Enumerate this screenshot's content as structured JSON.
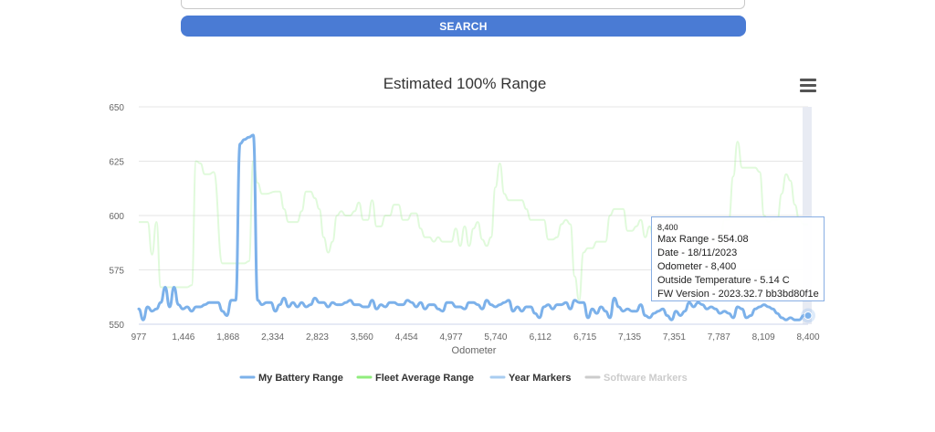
{
  "search": {
    "button_label": "SEARCH"
  },
  "chart_data": {
    "type": "line",
    "title": "Estimated 100% Range",
    "xlabel": "Odometer",
    "ylabel": "",
    "ylim": [
      550,
      650
    ],
    "yticks": [
      550,
      575,
      600,
      625,
      650
    ],
    "xtick_labels": [
      "977",
      "1,446",
      "1,868",
      "2,334",
      "2,823",
      "3,560",
      "4,454",
      "4,977",
      "5,740",
      "6,112",
      "6,715",
      "7,135",
      "7,351",
      "7,787",
      "8,109",
      "8,400"
    ],
    "grid": true,
    "legend_position": "bottom",
    "point_count": 156,
    "series": [
      {
        "name": "My Battery Range",
        "color": "#7cb1ea",
        "visible": true,
        "values": [
          [
            0,
            557
          ],
          [
            4,
            552
          ],
          [
            8,
            558
          ],
          [
            12,
            556
          ],
          [
            16,
            557
          ],
          [
            20,
            560
          ],
          [
            24,
            567
          ],
          [
            28,
            558
          ],
          [
            32,
            567
          ],
          [
            36,
            559
          ],
          [
            40,
            557
          ],
          [
            44,
            558
          ],
          [
            48,
            556
          ],
          [
            52,
            558
          ],
          [
            56,
            558
          ],
          [
            60,
            559
          ],
          [
            64,
            560
          ],
          [
            68,
            560
          ],
          [
            72,
            560
          ],
          [
            76,
            556
          ],
          [
            80,
            554
          ],
          [
            84,
            561
          ],
          [
            88,
            561
          ],
          [
            92,
            633
          ],
          [
            96,
            635
          ],
          [
            100,
            636
          ],
          [
            104,
            637
          ],
          [
            108,
            561
          ],
          [
            112,
            559
          ],
          [
            116,
            560
          ],
          [
            120,
            560
          ],
          [
            124,
            556
          ],
          [
            128,
            559
          ],
          [
            132,
            562
          ],
          [
            136,
            558
          ],
          [
            140,
            560
          ],
          [
            144,
            558
          ],
          [
            148,
            560
          ],
          [
            152,
            558
          ],
          [
            156,
            559
          ],
          [
            160,
            562
          ],
          [
            164,
            560
          ],
          [
            168,
            560
          ],
          [
            172,
            558
          ],
          [
            176,
            560
          ],
          [
            180,
            559
          ],
          [
            184,
            559
          ],
          [
            188,
            560
          ],
          [
            192,
            561
          ],
          [
            196,
            559
          ],
          [
            200,
            559
          ],
          [
            204,
            558
          ],
          [
            208,
            558
          ],
          [
            212,
            561
          ],
          [
            216,
            557
          ],
          [
            220,
            559
          ],
          [
            224,
            558
          ],
          [
            228,
            560
          ],
          [
            232,
            560
          ],
          [
            236,
            559
          ],
          [
            240,
            559
          ],
          [
            244,
            561
          ],
          [
            248,
            560
          ],
          [
            252,
            558
          ],
          [
            256,
            560
          ],
          [
            260,
            557
          ],
          [
            264,
            559
          ],
          [
            268,
            559
          ],
          [
            272,
            557
          ],
          [
            276,
            556
          ],
          [
            280,
            560
          ],
          [
            284,
            560
          ],
          [
            288,
            558
          ],
          [
            292,
            558
          ],
          [
            296,
            557
          ],
          [
            300,
            560
          ],
          [
            304,
            560
          ],
          [
            308,
            559
          ],
          [
            312,
            557
          ],
          [
            316,
            561
          ],
          [
            320,
            559
          ],
          [
            324,
            558
          ],
          [
            328,
            559
          ],
          [
            332,
            560
          ],
          [
            336,
            561
          ],
          [
            340,
            556
          ],
          [
            344,
            558
          ],
          [
            348,
            556
          ],
          [
            352,
            558
          ],
          [
            356,
            558
          ],
          [
            360,
            555
          ],
          [
            364,
            553
          ],
          [
            368,
            558
          ],
          [
            372,
            559
          ],
          [
            376,
            557
          ],
          [
            380,
            559
          ],
          [
            384,
            559
          ],
          [
            388,
            560
          ],
          [
            392,
            557
          ],
          [
            396,
            561
          ],
          [
            400,
            560
          ],
          [
            404,
            560
          ],
          [
            408,
            553
          ],
          [
            412,
            557
          ],
          [
            416,
            555
          ],
          [
            420,
            558
          ],
          [
            424,
            556
          ],
          [
            428,
            553
          ],
          [
            432,
            562
          ],
          [
            436,
            558
          ],
          [
            440,
            556
          ],
          [
            444,
            557
          ],
          [
            448,
            556
          ],
          [
            452,
            556
          ],
          [
            456,
            559
          ],
          [
            460,
            554
          ],
          [
            464,
            553
          ],
          [
            468,
            555
          ],
          [
            472,
            556
          ],
          [
            476,
            557
          ],
          [
            480,
            554
          ],
          [
            484,
            552
          ],
          [
            488,
            556
          ],
          [
            492,
            554
          ],
          [
            496,
            556
          ],
          [
            500,
            560
          ],
          [
            504,
            558
          ],
          [
            508,
            560
          ],
          [
            512,
            559
          ],
          [
            516,
            557
          ],
          [
            520,
            558
          ],
          [
            524,
            557
          ],
          [
            528,
            555
          ],
          [
            532,
            556
          ],
          [
            536,
            555
          ],
          [
            540,
            553
          ],
          [
            544,
            558
          ],
          [
            548,
            557
          ],
          [
            552,
            553
          ],
          [
            556,
            554
          ],
          [
            560,
            557
          ],
          [
            564,
            558
          ],
          [
            568,
            559
          ],
          [
            572,
            558
          ],
          [
            576,
            557
          ],
          [
            580,
            555
          ],
          [
            584,
            553
          ],
          [
            588,
            552
          ],
          [
            592,
            553
          ],
          [
            596,
            552
          ],
          [
            600,
            552
          ],
          [
            604,
            554
          ],
          [
            608,
            554
          ]
        ]
      },
      {
        "name": "Fleet Average Range",
        "color": "#90ed7d",
        "visible": true,
        "values": [
          [
            0,
            597
          ],
          [
            8,
            597
          ],
          [
            12,
            582
          ],
          [
            16,
            597
          ],
          [
            20,
            567
          ],
          [
            28,
            567
          ],
          [
            36,
            567
          ],
          [
            44,
            567
          ],
          [
            48,
            568
          ],
          [
            52,
            625
          ],
          [
            56,
            624
          ],
          [
            60,
            619
          ],
          [
            64,
            619
          ],
          [
            68,
            620
          ],
          [
            76,
            578
          ],
          [
            84,
            578
          ],
          [
            92,
            578
          ],
          [
            96,
            578
          ],
          [
            100,
            579
          ],
          [
            104,
            625
          ],
          [
            108,
            615
          ],
          [
            112,
            610
          ],
          [
            116,
            610
          ],
          [
            124,
            611
          ],
          [
            128,
            611
          ],
          [
            132,
            603
          ],
          [
            136,
            597
          ],
          [
            144,
            597
          ],
          [
            148,
            602
          ],
          [
            152,
            611
          ],
          [
            156,
            611
          ],
          [
            160,
            608
          ],
          [
            164,
            603
          ],
          [
            168,
            590
          ],
          [
            172,
            583
          ],
          [
            176,
            588
          ],
          [
            180,
            600
          ],
          [
            184,
            602
          ],
          [
            188,
            600
          ],
          [
            192,
            600
          ],
          [
            196,
            602
          ],
          [
            200,
            606
          ],
          [
            204,
            598
          ],
          [
            208,
            598
          ],
          [
            212,
            607
          ],
          [
            216,
            595
          ],
          [
            220,
            595
          ],
          [
            224,
            600
          ],
          [
            228,
            600
          ],
          [
            232,
            605
          ],
          [
            236,
            605
          ],
          [
            240,
            598
          ],
          [
            244,
            598
          ],
          [
            248,
            601
          ],
          [
            252,
            601
          ],
          [
            256,
            594
          ],
          [
            260,
            590
          ],
          [
            264,
            590
          ],
          [
            268,
            588
          ],
          [
            272,
            590
          ],
          [
            276,
            588
          ],
          [
            280,
            588
          ],
          [
            284,
            588
          ],
          [
            288,
            594
          ],
          [
            292,
            586
          ],
          [
            296,
            595
          ],
          [
            300,
            586
          ],
          [
            304,
            594
          ],
          [
            308,
            597
          ],
          [
            312,
            589
          ],
          [
            316,
            586
          ],
          [
            320,
            590
          ],
          [
            324,
            613
          ],
          [
            328,
            624
          ],
          [
            332,
            610
          ],
          [
            336,
            607
          ],
          [
            340,
            607
          ],
          [
            344,
            607
          ],
          [
            348,
            607
          ],
          [
            352,
            603
          ],
          [
            356,
            598
          ],
          [
            360,
            598
          ],
          [
            364,
            598
          ],
          [
            368,
            598
          ],
          [
            372,
            589
          ],
          [
            376,
            589
          ],
          [
            380,
            590
          ],
          [
            384,
            596
          ],
          [
            388,
            598
          ],
          [
            392,
            596
          ],
          [
            396,
            572
          ],
          [
            400,
            561
          ],
          [
            404,
            583
          ],
          [
            408,
            585
          ],
          [
            412,
            585
          ],
          [
            416,
            588
          ],
          [
            420,
            588
          ],
          [
            424,
            588
          ],
          [
            428,
            600
          ],
          [
            432,
            603
          ],
          [
            436,
            603
          ],
          [
            440,
            603
          ],
          [
            444,
            593
          ],
          [
            448,
            593
          ],
          [
            452,
            595
          ],
          [
            456,
            598
          ],
          [
            460,
            590
          ],
          [
            464,
            595
          ],
          [
            468,
            588
          ],
          [
            472,
            595
          ],
          [
            476,
            590
          ],
          [
            480,
            577
          ],
          [
            484,
            572
          ],
          [
            488,
            575
          ],
          [
            492,
            579
          ],
          [
            496,
            579
          ],
          [
            500,
            580
          ],
          [
            504,
            580
          ],
          [
            508,
            585
          ],
          [
            512,
            590
          ],
          [
            516,
            588
          ],
          [
            520,
            588
          ],
          [
            524,
            590
          ],
          [
            528,
            586
          ],
          [
            532,
            598
          ],
          [
            536,
            598
          ],
          [
            540,
            618
          ],
          [
            544,
            634
          ],
          [
            548,
            622
          ],
          [
            552,
            622
          ],
          [
            556,
            622
          ],
          [
            560,
            622
          ],
          [
            564,
            620
          ],
          [
            568,
            600
          ],
          [
            572,
            597
          ],
          [
            576,
            598
          ],
          [
            580,
            598
          ],
          [
            584,
            610
          ],
          [
            588,
            619
          ],
          [
            592,
            616
          ],
          [
            596,
            605
          ],
          [
            600,
            598
          ],
          [
            604,
            596
          ],
          [
            608,
            596
          ]
        ]
      },
      {
        "name": "Year Markers",
        "color": "#a9cdf0",
        "visible": true,
        "values": []
      },
      {
        "name": "Software Markers",
        "color": "#cccccc",
        "visible": false,
        "values": []
      }
    ],
    "tooltip": {
      "header": "8,400",
      "lines": [
        "Max Range - 554.08",
        "Date - 18/11/2023",
        "Odometer - 8,400",
        "Outside Temperature - 5.14 C",
        "FW Version - 2023.32.7 bb3bd80f1e"
      ]
    }
  }
}
